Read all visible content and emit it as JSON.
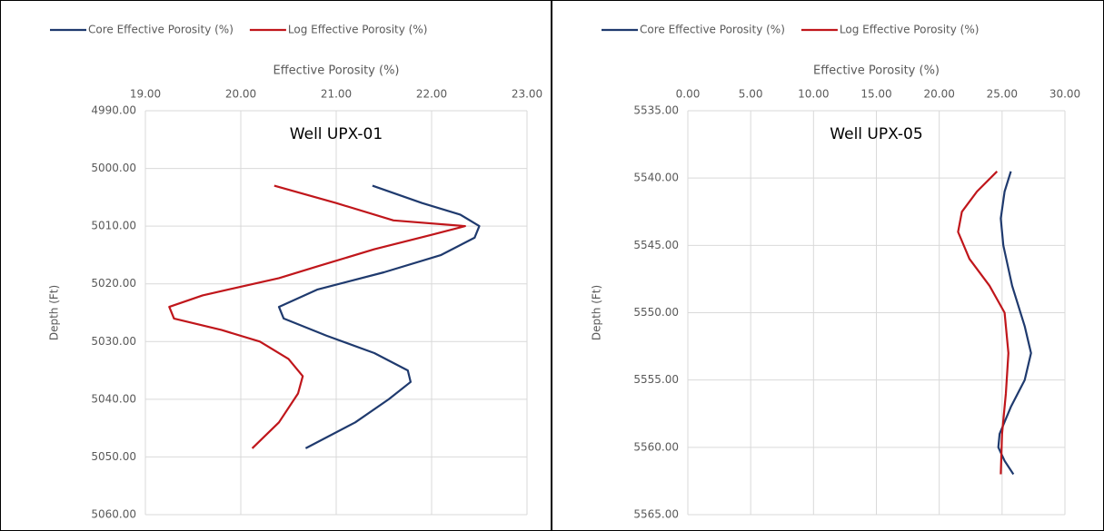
{
  "chart_data": [
    {
      "type": "line",
      "title": "Well UPX-01",
      "x_label": "Effective Porosity (%)",
      "y_label": "Depth (Ft)",
      "xlim": [
        19,
        23
      ],
      "xticks": [
        {
          "value": 19,
          "label": "19.00"
        },
        {
          "value": 20,
          "label": "20.00"
        },
        {
          "value": 21,
          "label": "21.00"
        },
        {
          "value": 22,
          "label": "22.00"
        },
        {
          "value": 23,
          "label": "23.00"
        }
      ],
      "ylim": [
        4990,
        5060
      ],
      "yticks": [
        {
          "value": 4990,
          "label": "4990.00"
        },
        {
          "value": 5000,
          "label": "5000.00"
        },
        {
          "value": 5010,
          "label": "5010.00"
        },
        {
          "value": 5020,
          "label": "5020.00"
        },
        {
          "value": 5030,
          "label": "5030.00"
        },
        {
          "value": 5040,
          "label": "5040.00"
        },
        {
          "value": 5050,
          "label": "5050.00"
        },
        {
          "value": 5060,
          "label": "5060.00"
        }
      ],
      "y_inverted": true,
      "grid": true,
      "series": [
        {
          "name": "Core Effective Porosity (%)",
          "color": "#1f3a6e",
          "x": [
            21.38,
            21.9,
            22.3,
            22.5,
            22.45,
            22.1,
            21.5,
            20.8,
            20.4,
            20.45,
            20.9,
            21.4,
            21.75,
            21.78,
            21.55,
            21.2,
            20.68
          ],
          "y": [
            5003,
            5006,
            5008,
            5010,
            5012,
            5015,
            5018,
            5021,
            5024,
            5026,
            5029,
            5032,
            5035,
            5037,
            5040,
            5044,
            5048.5
          ]
        },
        {
          "name": "Log Effective Porosity (%)",
          "color": "#c0161b",
          "x": [
            20.35,
            21.0,
            21.6,
            22.35,
            22.0,
            21.4,
            20.8,
            20.4,
            19.6,
            19.25,
            19.3,
            19.8,
            20.2,
            20.5,
            20.65,
            20.6,
            20.4,
            20.12
          ],
          "y": [
            5003,
            5006,
            5009,
            5010,
            5011.5,
            5014,
            5017,
            5019,
            5022,
            5024,
            5026,
            5028,
            5030,
            5033,
            5036,
            5039,
            5044,
            5048.5
          ]
        }
      ]
    },
    {
      "type": "line",
      "title": "Well UPX-05",
      "x_label": "Effective Porosity (%)",
      "y_label": "Depth (Ft)",
      "xlim": [
        0,
        30
      ],
      "xticks": [
        {
          "value": 0,
          "label": "0.00"
        },
        {
          "value": 5,
          "label": "5.00"
        },
        {
          "value": 10,
          "label": "10.00"
        },
        {
          "value": 15,
          "label": "15.00"
        },
        {
          "value": 20,
          "label": "20.00"
        },
        {
          "value": 25,
          "label": "25.00"
        },
        {
          "value": 30,
          "label": "30.00"
        }
      ],
      "ylim": [
        5535,
        5565
      ],
      "yticks": [
        {
          "value": 5535,
          "label": "5535.00"
        },
        {
          "value": 5540,
          "label": "5540.00"
        },
        {
          "value": 5545,
          "label": "5545.00"
        },
        {
          "value": 5550,
          "label": "5550.00"
        },
        {
          "value": 5555,
          "label": "5555.00"
        },
        {
          "value": 5560,
          "label": "5560.00"
        },
        {
          "value": 5565,
          "label": "5565.00"
        }
      ],
      "y_inverted": true,
      "grid": true,
      "series": [
        {
          "name": "Core Effective Porosity (%)",
          "color": "#1f3a6e",
          "x": [
            25.7,
            25.2,
            24.9,
            25.1,
            25.8,
            26.8,
            27.3,
            26.8,
            25.7,
            24.8,
            24.7,
            25.2,
            25.9
          ],
          "y": [
            5539.5,
            5541,
            5543,
            5545,
            5548,
            5551,
            5553,
            5555,
            5557,
            5559,
            5560,
            5561,
            5562
          ]
        },
        {
          "name": "Log Effective Porosity (%)",
          "color": "#c0161b",
          "x": [
            24.6,
            23.0,
            21.8,
            21.5,
            22.4,
            24.0,
            25.2,
            25.5,
            25.3,
            25.0,
            24.9
          ],
          "y": [
            5539.5,
            5541,
            5542.5,
            5544,
            5546,
            5548,
            5550,
            5553,
            5556,
            5559,
            5562
          ]
        }
      ]
    }
  ]
}
